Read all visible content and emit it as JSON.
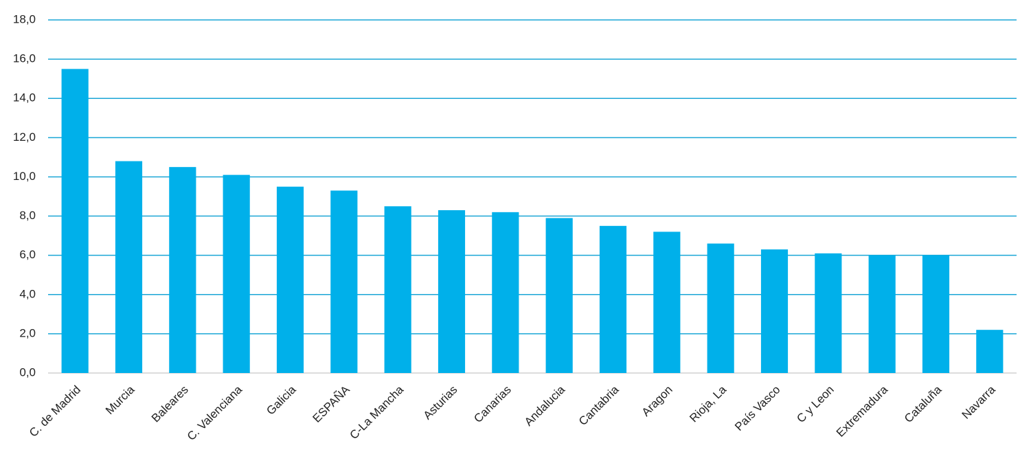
{
  "chart_data": {
    "type": "bar",
    "categories": [
      "C. de Madrid",
      "Murcia",
      "Baleares",
      "C. Valenciana",
      "Galicia",
      "ESPAÑA",
      "C-La Mancha",
      "Asturias",
      "Canarias",
      "Andalucia",
      "Cantabria",
      "Aragon",
      "Rioja, La",
      "País Vasco",
      "C y Leon",
      "Extremadura",
      "Cataluña",
      "Navarra"
    ],
    "values": [
      15.5,
      10.8,
      10.5,
      10.1,
      9.5,
      9.3,
      8.5,
      8.3,
      8.2,
      7.9,
      7.5,
      7.2,
      6.6,
      6.3,
      6.1,
      6.0,
      6.0,
      2.2
    ],
    "color": "#00b0ea",
    "ylim": [
      0,
      18
    ],
    "yticks": [
      {
        "value": 0,
        "label": "0,0"
      },
      {
        "value": 2,
        "label": "2,0"
      },
      {
        "value": 4,
        "label": "4,0"
      },
      {
        "value": 6,
        "label": "6,0"
      },
      {
        "value": 8,
        "label": "8,0"
      },
      {
        "value": 10,
        "label": "10,0"
      },
      {
        "value": 12,
        "label": "12,0"
      },
      {
        "value": 14,
        "label": "14,0"
      },
      {
        "value": 16,
        "label": "16,0"
      },
      {
        "value": 18,
        "label": "18,0"
      }
    ],
    "grid": true
  }
}
